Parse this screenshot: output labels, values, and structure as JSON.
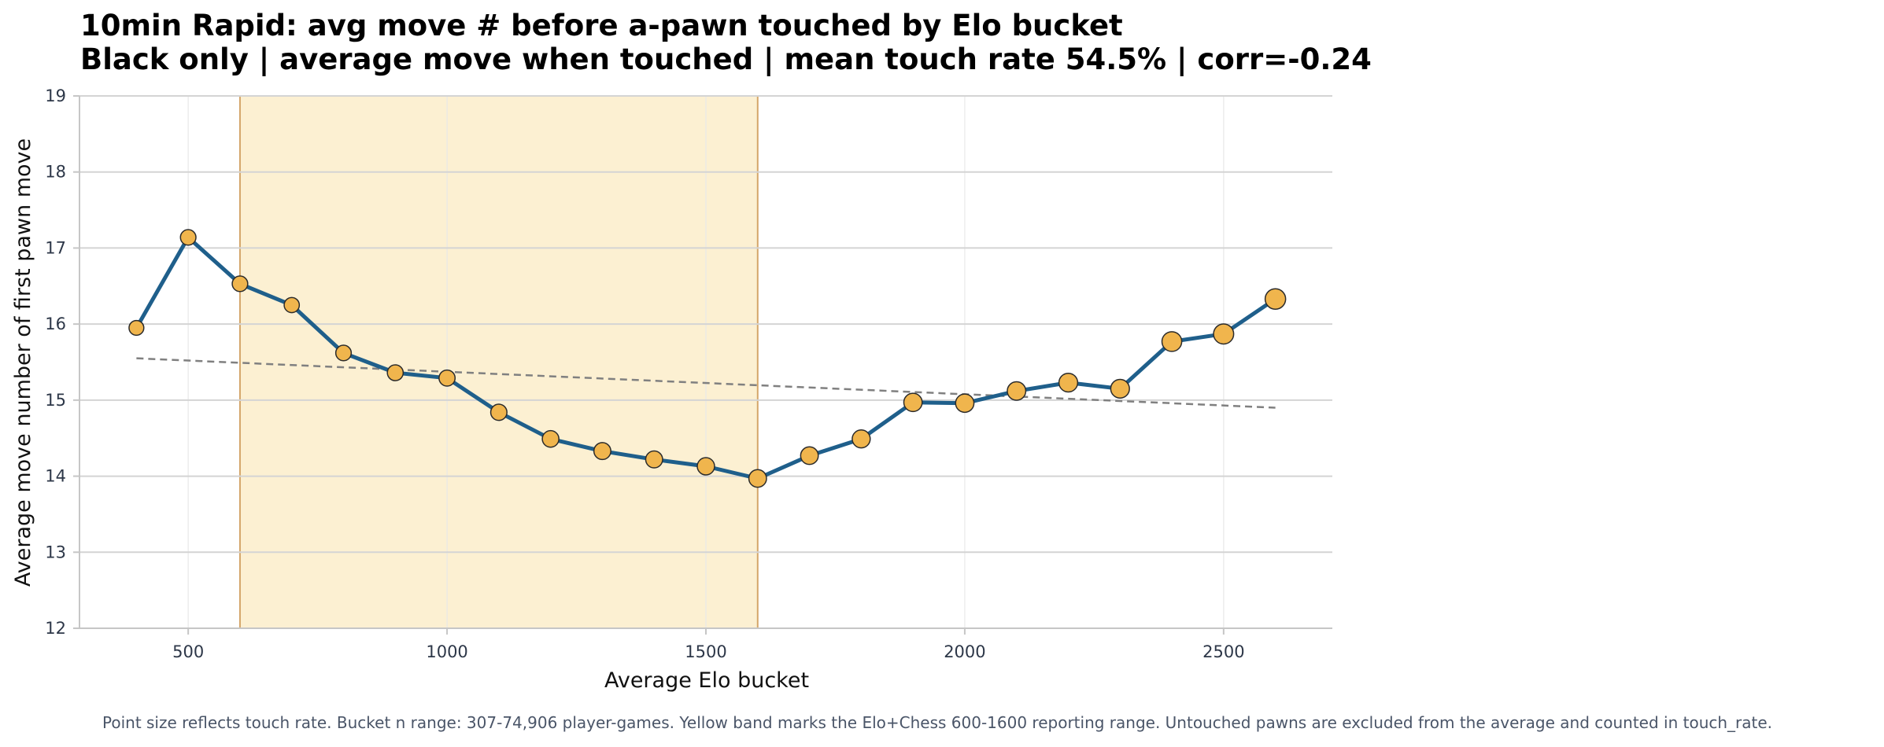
{
  "chart_data": {
    "type": "line",
    "title": "10min Rapid: avg move # before a-pawn touched by Elo bucket",
    "subtitle": "Black only | average move when touched | mean touch rate 54.5% | corr=-0.24",
    "xlabel": "Average Elo bucket",
    "ylabel": "Average move number of first pawn move",
    "xlim": [
      290,
      2710
    ],
    "ylim": [
      12,
      19
    ],
    "xticks": [
      500,
      1000,
      1500,
      2000,
      2500
    ],
    "yticks": [
      12,
      13,
      14,
      15,
      16,
      17,
      18,
      19
    ],
    "grid": true,
    "legend": "none",
    "band": {
      "x_start": 600,
      "x_end": 1600,
      "color": "#fcf0d2",
      "edge_color": "#d4a66a"
    },
    "series": [
      {
        "type": "line",
        "color": "#1f5f8b",
        "marker_color": "#f0b54d",
        "x": [
          400,
          500,
          600,
          700,
          800,
          900,
          1000,
          1100,
          1200,
          1300,
          1400,
          1500,
          1600,
          1700,
          1800,
          1900,
          2000,
          2100,
          2200,
          2300,
          2400,
          2500,
          2600
        ],
        "y": [
          15.95,
          17.14,
          16.53,
          16.25,
          15.62,
          15.36,
          15.29,
          14.84,
          14.49,
          14.33,
          14.22,
          14.13,
          13.97,
          14.27,
          14.49,
          14.97,
          14.96,
          15.12,
          15.23,
          15.15,
          15.77,
          15.87,
          16.33
        ],
        "touch_rate_relative": [
          0.2,
          0.3,
          0.3,
          0.25,
          0.3,
          0.35,
          0.38,
          0.4,
          0.45,
          0.5,
          0.5,
          0.55,
          0.6,
          0.6,
          0.65,
          0.7,
          0.7,
          0.72,
          0.75,
          0.75,
          0.9,
          0.95,
          1.0
        ]
      },
      {
        "type": "trend",
        "style": "dashed",
        "color": "#808080",
        "x": [
          400,
          2600
        ],
        "y": [
          15.55,
          14.9
        ]
      }
    ]
  },
  "footnote": "Point size reflects touch rate. Bucket n range: 307-74,906 player-games. Yellow band marks the Elo+Chess 600-1600 reporting range. Untouched pawns are excluded from the average and counted in touch_rate."
}
